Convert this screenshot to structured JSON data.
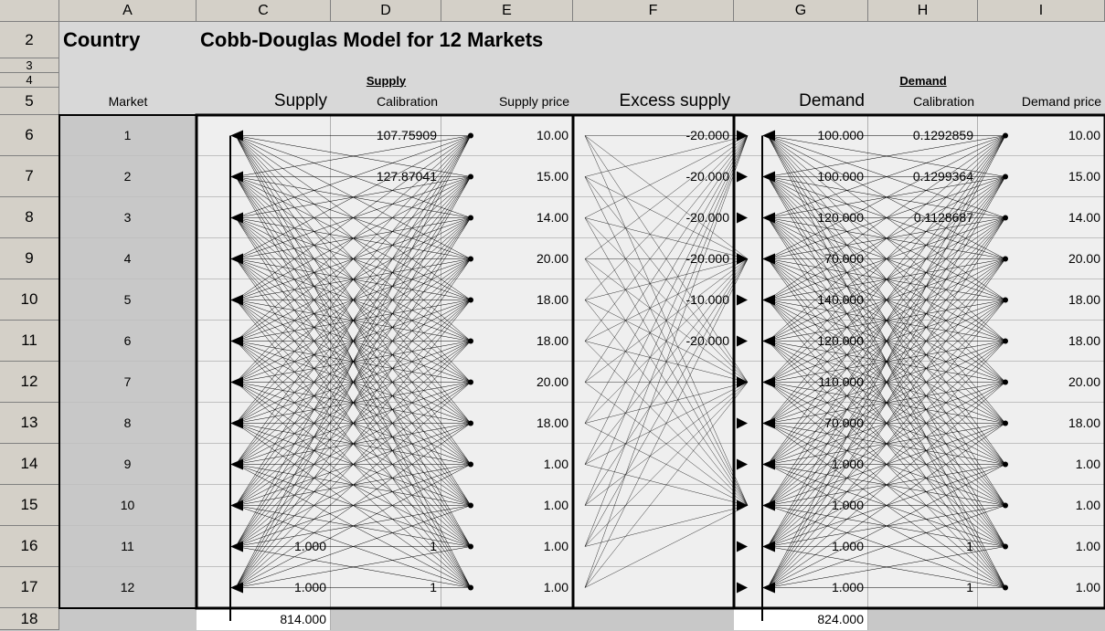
{
  "column_headers": [
    "A",
    "C",
    "D",
    "E",
    "F",
    "G",
    "H",
    "I"
  ],
  "row_headers": [
    "2",
    "3",
    "4",
    "5",
    "6",
    "7",
    "8",
    "9",
    "10",
    "11",
    "12",
    "13",
    "14",
    "15",
    "16",
    "17",
    "18"
  ],
  "title": {
    "country": "Country",
    "model": "Cobb-Douglas Model for 12 Markets"
  },
  "groups": {
    "supply": "Supply",
    "demand": "Demand"
  },
  "field_headers": [
    "Market",
    "Supply",
    "Calibration",
    "Supply price",
    "Excess supply",
    "Demand",
    "Calibration",
    "Demand price"
  ],
  "markets": [
    [
      "1",
      null,
      "107.75909",
      "10.00",
      "-20.000",
      "100.000",
      "0.1292859",
      "10.00"
    ],
    [
      "2",
      null,
      "127.87041",
      "15.00",
      "-20.000",
      "100.000",
      "0.1299364",
      "15.00"
    ],
    [
      "3",
      null,
      null,
      "14.00",
      "-20.000",
      "120.000",
      "0.1128687",
      "14.00"
    ],
    [
      "4",
      null,
      null,
      "20.00",
      "-20.000",
      "70.000",
      null,
      "20.00"
    ],
    [
      "5",
      null,
      null,
      "18.00",
      "-10.000",
      "140.000",
      null,
      "18.00"
    ],
    [
      "6",
      null,
      null,
      "18.00",
      "-20.000",
      "120.000",
      null,
      "18.00"
    ],
    [
      "7",
      null,
      null,
      "20.00",
      null,
      "110.000",
      null,
      "20.00"
    ],
    [
      "8",
      null,
      null,
      "18.00",
      null,
      "70.000",
      null,
      "18.00"
    ],
    [
      "9",
      null,
      null,
      "1.00",
      null,
      "1.000",
      null,
      "1.00"
    ],
    [
      "10",
      null,
      null,
      "1.00",
      null,
      "1.000",
      null,
      "1.00"
    ],
    [
      "11",
      "1.000",
      "1",
      "1.00",
      null,
      "1.000",
      "1",
      "1.00"
    ],
    [
      "12",
      "1.000",
      "1",
      "1.00",
      null,
      "1.000",
      "1",
      "1.00"
    ]
  ],
  "totals": {
    "supply": "814.000",
    "demand": "824.000"
  }
}
